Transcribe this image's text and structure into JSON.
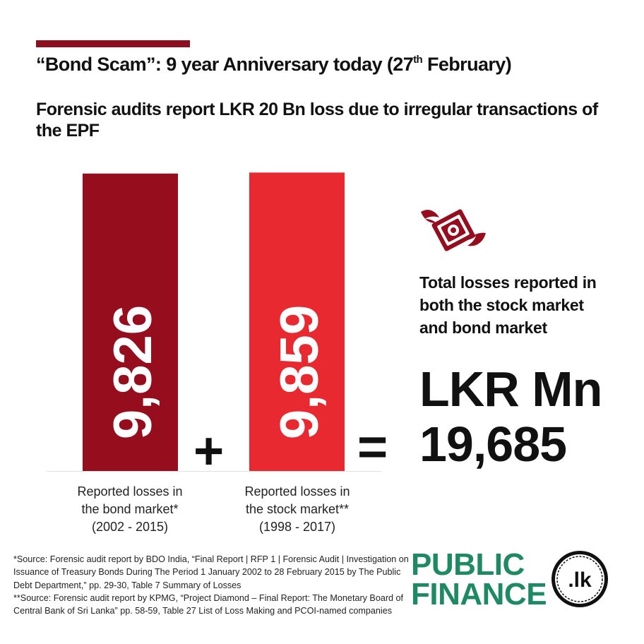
{
  "header": {
    "headline_pre": "“Bond Scam”: 9 year Anniversary today (27",
    "headline_sup": "th",
    "headline_post": " February)",
    "subheadline": "Forensic audits report LKR 20 Bn loss due to irregular transactions of the EPF"
  },
  "chart_data": {
    "type": "bar",
    "categories": [
      "Reported losses in the bond market* (2002 - 2015)",
      "Reported losses in the stock market** (1998 - 2017)"
    ],
    "values": [
      9826,
      9859
    ],
    "value_labels": [
      "9,826",
      "9,859"
    ],
    "colors": [
      "#960d1e",
      "#e8292f"
    ],
    "ylim": [
      0,
      11500
    ]
  },
  "labels": {
    "bond": [
      "Reported losses in",
      "the bond market*",
      "(2002 - 2015)"
    ],
    "stock": [
      "Reported losses in",
      "the stock market**",
      "(1998 - 2017)"
    ]
  },
  "operators": {
    "plus": "+",
    "equals": "="
  },
  "total": {
    "caption": "Total losses reported in both the stock market and bond market",
    "unit": "LKR Mn",
    "value": "19,685",
    "icon": "flying-money-icon",
    "icon_color": "#960d1e"
  },
  "footnotes": {
    "source1": "*Source: Forensic audit report by BDO India, “Final Report | RFP 1 | Forensic Audit | Investigation on Issuance of Treasury Bonds During The Period 1 January 2002 to 28 February 2015 by The Public Debt Department,” pp. 29-30, Table 7 Summary of Losses",
    "source2": "**Source: Forensic audit report by KPMG, “Project Diamond – Final Report: The Monetary Board of Central Bank of Sri Lanka” pp. 58-59, Table 27 List of Loss Making and PCOI-named companies"
  },
  "logo": {
    "line1": "PUBLIC",
    "line2": "FINANCE",
    "badge": ".lk",
    "color": "#1e8a63"
  }
}
